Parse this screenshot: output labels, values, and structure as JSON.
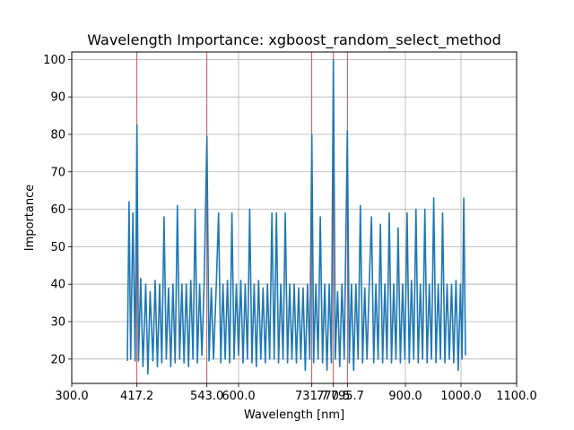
{
  "chart_data": {
    "type": "line",
    "title": "Wavelength Importance: xgboost_random_select_method",
    "xlabel": "Wavelength [nm]",
    "ylabel": "Importance",
    "xlim": [
      300,
      1100
    ],
    "ylim": [
      13.5,
      102
    ],
    "grid": true,
    "series_color": "#1f77b4",
    "marker_color": "#d62728",
    "x_ticks": [
      300.0,
      417.2,
      543.0,
      600.0,
      731.7,
      770.5,
      795.7,
      900.0,
      1000.0,
      1100.0
    ],
    "x_tick_labels": [
      "300.0",
      "417.2",
      "543.0",
      "600.0",
      "731.7",
      "770.5",
      "795.7",
      "900.0",
      "1000.0",
      "1100.0"
    ],
    "y_ticks": [
      20,
      30,
      40,
      50,
      60,
      70,
      80,
      90,
      100
    ],
    "y_tick_labels": [
      "20",
      "30",
      "40",
      "50",
      "60",
      "70",
      "80",
      "90",
      "100"
    ],
    "highlighted_wavelengths": [
      417.2,
      543.0,
      731.7,
      770.5,
      795.7
    ],
    "series": [
      {
        "x": [
          400,
          403,
          406,
          410,
          414,
          417.2,
          420,
          424,
          428,
          433,
          437,
          441,
          446,
          450,
          454,
          458,
          462,
          466,
          470,
          474,
          478,
          482,
          486,
          490,
          494,
          498,
          502,
          506,
          510,
          514,
          518,
          522,
          526,
          530,
          534,
          538,
          543.0,
          547,
          551,
          555,
          560,
          564,
          568,
          572,
          576,
          580,
          584,
          588,
          592,
          596,
          600,
          604,
          608,
          612,
          616,
          620,
          624,
          628,
          632,
          636,
          640,
          644,
          648,
          652,
          656,
          660,
          664,
          668,
          672,
          676,
          680,
          684,
          688,
          692,
          696,
          700,
          704,
          708,
          712,
          716,
          720,
          724,
          728,
          731.7,
          735,
          739,
          743,
          747,
          751,
          755,
          759,
          763,
          767,
          770.5,
          774,
          778,
          782,
          786,
          790,
          795.7,
          799,
          803,
          807,
          811,
          815,
          819,
          823,
          827,
          831,
          835,
          839,
          843,
          847,
          851,
          855,
          859,
          863,
          867,
          871,
          875,
          879,
          883,
          887,
          891,
          895,
          899,
          903,
          907,
          911,
          915,
          919,
          923,
          927,
          931,
          935,
          939,
          943,
          947,
          951,
          955,
          959,
          963,
          967,
          971,
          975,
          979,
          983,
          987,
          991,
          995,
          999,
          1002,
          1005,
          1008
        ],
        "y": [
          19.5,
          62,
          20,
          59,
          19.5,
          82.5,
          19.5,
          41.5,
          18,
          40,
          16,
          38,
          19.5,
          41,
          18,
          40,
          19,
          58,
          20,
          39,
          18,
          40,
          19,
          61,
          20,
          40,
          19,
          40,
          18,
          41,
          20,
          60,
          19,
          40,
          21,
          40,
          79.5,
          19.5,
          39,
          20,
          40,
          59,
          19,
          40,
          20,
          41,
          19,
          59,
          20,
          40,
          21,
          41,
          19,
          40,
          20,
          60,
          19,
          40,
          18,
          41,
          20,
          39,
          19,
          40,
          20,
          59,
          20,
          59,
          19,
          40,
          20,
          59,
          19,
          40,
          20,
          40,
          19,
          39,
          20,
          39,
          17,
          40,
          20,
          80,
          19,
          40,
          20,
          58,
          19,
          40,
          17,
          40,
          19,
          100,
          20,
          38,
          18,
          40,
          20,
          81,
          19,
          40,
          17,
          40,
          20,
          61,
          19,
          39,
          20,
          40,
          58,
          19,
          40,
          20,
          56,
          19,
          40,
          20,
          59,
          19,
          40,
          20,
          55,
          19,
          40,
          20,
          59,
          19,
          41,
          20,
          60,
          19,
          40,
          20,
          60,
          19,
          40,
          20,
          63,
          19,
          40,
          20,
          59,
          19,
          40,
          20,
          40,
          19,
          41,
          17,
          40,
          20,
          63,
          21
        ]
      }
    ]
  }
}
